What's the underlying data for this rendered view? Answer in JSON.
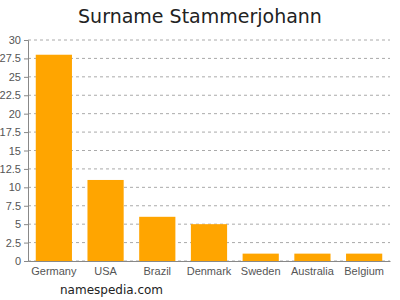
{
  "chart_data": {
    "type": "bar",
    "title": "Surname Stammerjohann",
    "categories": [
      "Germany",
      "USA",
      "Brazil",
      "Denmark",
      "Sweden",
      "Australia",
      "Belgium"
    ],
    "values": [
      28,
      11,
      6,
      5,
      1,
      1,
      1
    ],
    "color": "#ffa500",
    "ylim": [
      0,
      30
    ],
    "yticks": [
      0,
      2.5,
      5,
      7.5,
      10,
      12.5,
      15,
      17.5,
      20,
      22.5,
      25,
      27.5,
      30
    ],
    "grid": true,
    "annotation": "namespedia.com"
  }
}
